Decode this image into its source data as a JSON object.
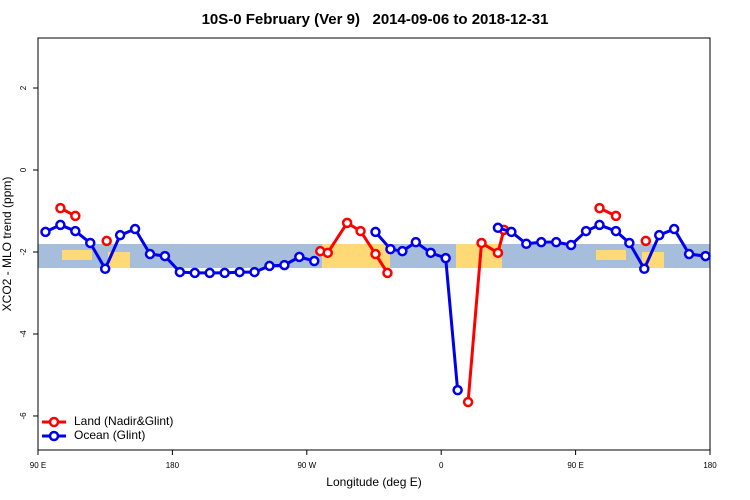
{
  "chart_data": {
    "type": "line",
    "title": "10S-0 February (Ver 9)   2014-09-06 to 2018-12-31",
    "xlabel": "Longitude (deg E)",
    "ylabel": "XCO2 - MLO trend (ppm)",
    "xlim": [
      90,
      540
    ],
    "xticks": [
      {
        "value": 90,
        "label": "90 E"
      },
      {
        "value": 180,
        "label": "180"
      },
      {
        "value": 270,
        "label": "90 W"
      },
      {
        "value": 360,
        "label": "0"
      },
      {
        "value": 450,
        "label": "90 E"
      },
      {
        "value": 540,
        "label": "180"
      }
    ],
    "ylim": [
      -6.83,
      3.22
    ],
    "yticks": [
      -6,
      -4,
      -2,
      0,
      2
    ],
    "legend": "bottom-left",
    "series": [
      {
        "name": "Land (Nadir&Glint)",
        "color": "#ff0000",
        "x": [
          105,
          115,
          null,
          136,
          null,
          279,
          284,
          297,
          306,
          316,
          324,
          null,
          378,
          387,
          398,
          402,
          null,
          466,
          477,
          null,
          497
        ],
        "values": [
          -0.93,
          -1.12,
          null,
          -1.73,
          null,
          -1.98,
          -2.02,
          -1.29,
          -1.49,
          -2.05,
          -2.51,
          null,
          -5.66,
          -1.78,
          -2.02,
          -1.46,
          null,
          -0.93,
          -1.12,
          null,
          -1.73
        ]
      },
      {
        "name": "Ocean (Glint)",
        "color": "#0000ee",
        "x": [
          95,
          105,
          115,
          125,
          135,
          145,
          155,
          165,
          175,
          185,
          195,
          205,
          215,
          225,
          235,
          245,
          255,
          265,
          275,
          null,
          316,
          326,
          334,
          343,
          353,
          363,
          371,
          null,
          398,
          407,
          417,
          427,
          437,
          447,
          457,
          466,
          477,
          486,
          496,
          506,
          516,
          526,
          537
        ],
        "values": [
          -1.51,
          -1.34,
          -1.49,
          -1.78,
          -2.41,
          -1.59,
          -1.44,
          -2.05,
          -2.1,
          -2.49,
          -2.51,
          -2.51,
          -2.51,
          -2.49,
          -2.49,
          -2.34,
          -2.32,
          -2.12,
          -2.22,
          null,
          -1.51,
          -1.93,
          -1.98,
          -1.76,
          -2.02,
          -2.15,
          -5.37,
          null,
          -1.41,
          -1.51,
          -1.8,
          -1.76,
          -1.76,
          -1.83,
          -1.49,
          -1.34,
          -1.49,
          -1.78,
          -2.41,
          -1.59,
          -1.44,
          -2.05,
          -2.1
        ]
      }
    ]
  }
}
